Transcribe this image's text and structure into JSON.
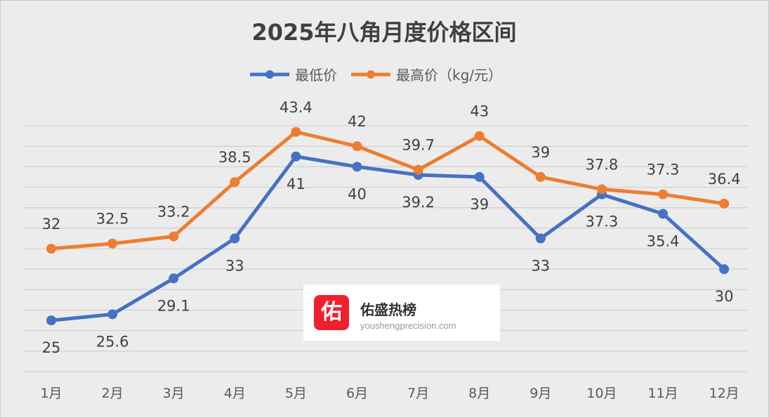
{
  "chart_data": {
    "type": "line",
    "title": "2025年八角月度价格区间",
    "categories": [
      "1月",
      "2月",
      "3月",
      "4月",
      "5月",
      "6月",
      "7月",
      "8月",
      "9月",
      "10月",
      "11月",
      "12月"
    ],
    "series": [
      {
        "name": "最低价",
        "color": "#4472c4",
        "values": [
          25,
          25.6,
          29.1,
          33,
          41,
          40,
          39.2,
          39,
          33,
          37.3,
          35.4,
          30
        ]
      },
      {
        "name": "最高价（kg/元）",
        "color": "#ed7d31",
        "values": [
          32,
          32.5,
          33.2,
          38.5,
          43.4,
          42,
          39.7,
          43,
          39,
          37.8,
          37.3,
          36.4
        ]
      }
    ],
    "ylim": [
      20,
      44
    ],
    "grid": true,
    "legend": "top-center",
    "data_labels": true
  },
  "watermark": {
    "logo_char": "佑",
    "name": "佑盛热榜",
    "url": "youshengprecision.com"
  }
}
